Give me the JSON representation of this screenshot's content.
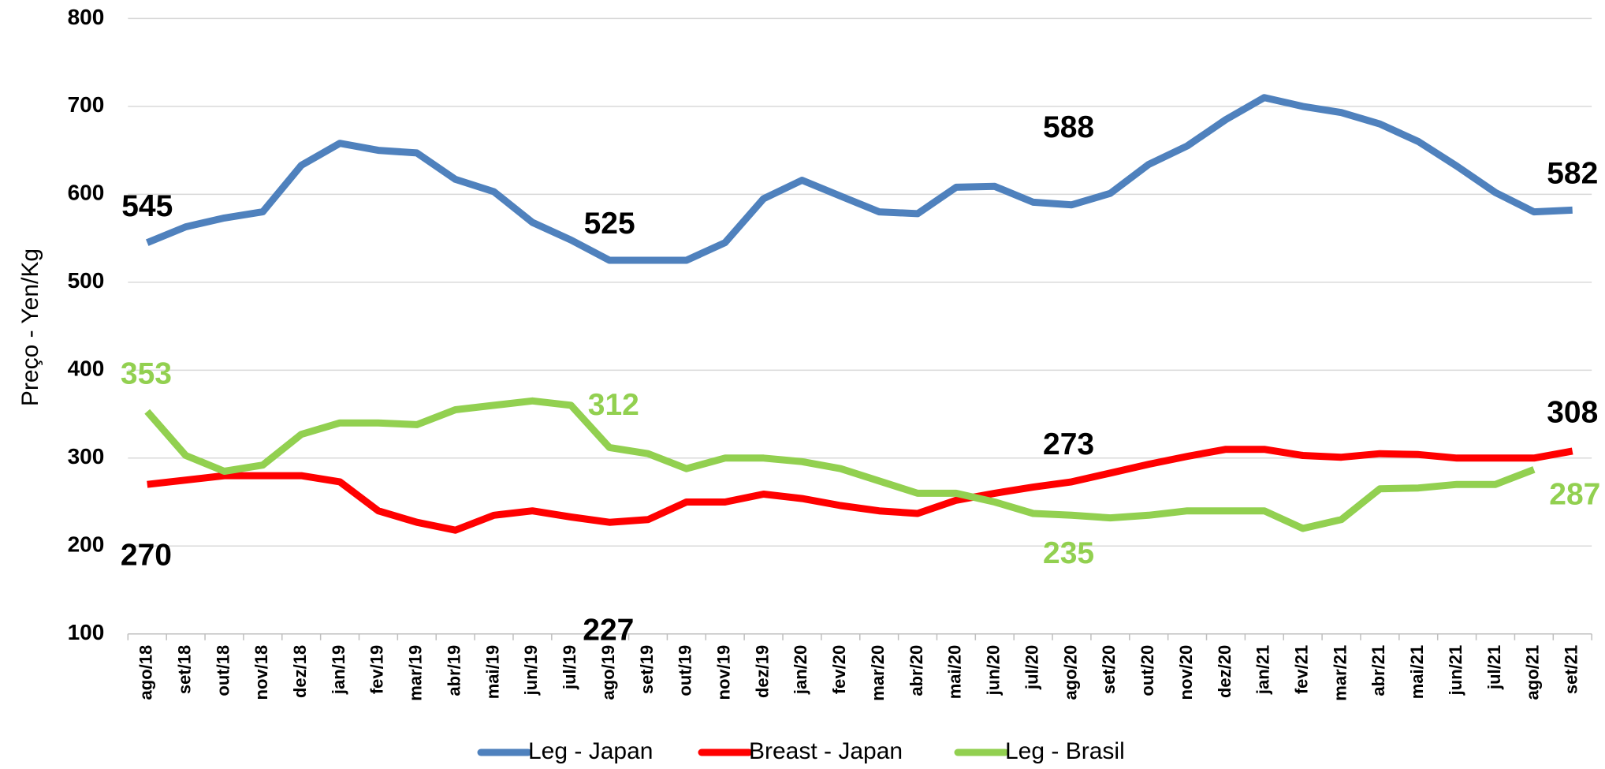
{
  "chart_data": {
    "type": "line",
    "y_label": "Preço - Yen/Kg",
    "categories": [
      "ago/18",
      "set/18",
      "out/18",
      "nov/18",
      "dez/18",
      "jan/19",
      "fev/19",
      "mar/19",
      "abr/19",
      "mai/19",
      "jun/19",
      "jul/19",
      "ago/19",
      "set/19",
      "out/19",
      "nov/19",
      "dez/19",
      "jan/20",
      "fev/20",
      "mar/20",
      "abr/20",
      "mai/20",
      "jun/20",
      "jul/20",
      "ago/20",
      "set/20",
      "out/20",
      "nov/20",
      "dez/20",
      "jan/21",
      "fev/21",
      "mar/21",
      "abr/21",
      "mai/21",
      "jun/21",
      "jul/21",
      "ago/21",
      "set/21"
    ],
    "series": [
      {
        "name": "Leg - Japan",
        "color": "#4f81bd",
        "values": [
          545,
          563,
          573,
          580,
          633,
          658,
          650,
          647,
          617,
          603,
          568,
          548,
          525,
          525,
          525,
          545,
          595,
          616,
          598,
          580,
          578,
          608,
          609,
          591,
          588,
          601,
          634,
          655,
          685,
          710,
          700,
          693,
          680,
          660,
          632,
          602,
          580,
          582
        ]
      },
      {
        "name": "Breast - Japan",
        "color": "#ff0000",
        "values": [
          270,
          275,
          280,
          280,
          280,
          273,
          240,
          227,
          218,
          235,
          240,
          233,
          227,
          230,
          250,
          250,
          259,
          254,
          246,
          240,
          237,
          252,
          260,
          267,
          273,
          283,
          293,
          302,
          310,
          310,
          303,
          301,
          305,
          304,
          300,
          300,
          300,
          308
        ]
      },
      {
        "name": "Leg - Brasil",
        "color": "#92d050",
        "values": [
          353,
          303,
          285,
          292,
          327,
          340,
          340,
          338,
          355,
          360,
          365,
          360,
          312,
          305,
          288,
          300,
          300,
          296,
          288,
          274,
          260,
          260,
          250,
          237,
          235,
          232,
          235,
          240,
          240,
          240,
          220,
          230,
          265,
          266,
          270,
          270,
          287,
          null
        ]
      }
    ],
    "ylim": [
      100,
      800
    ],
    "yticks": [
      100,
      200,
      300,
      400,
      500,
      600,
      700,
      800
    ],
    "grid": true
  }
}
